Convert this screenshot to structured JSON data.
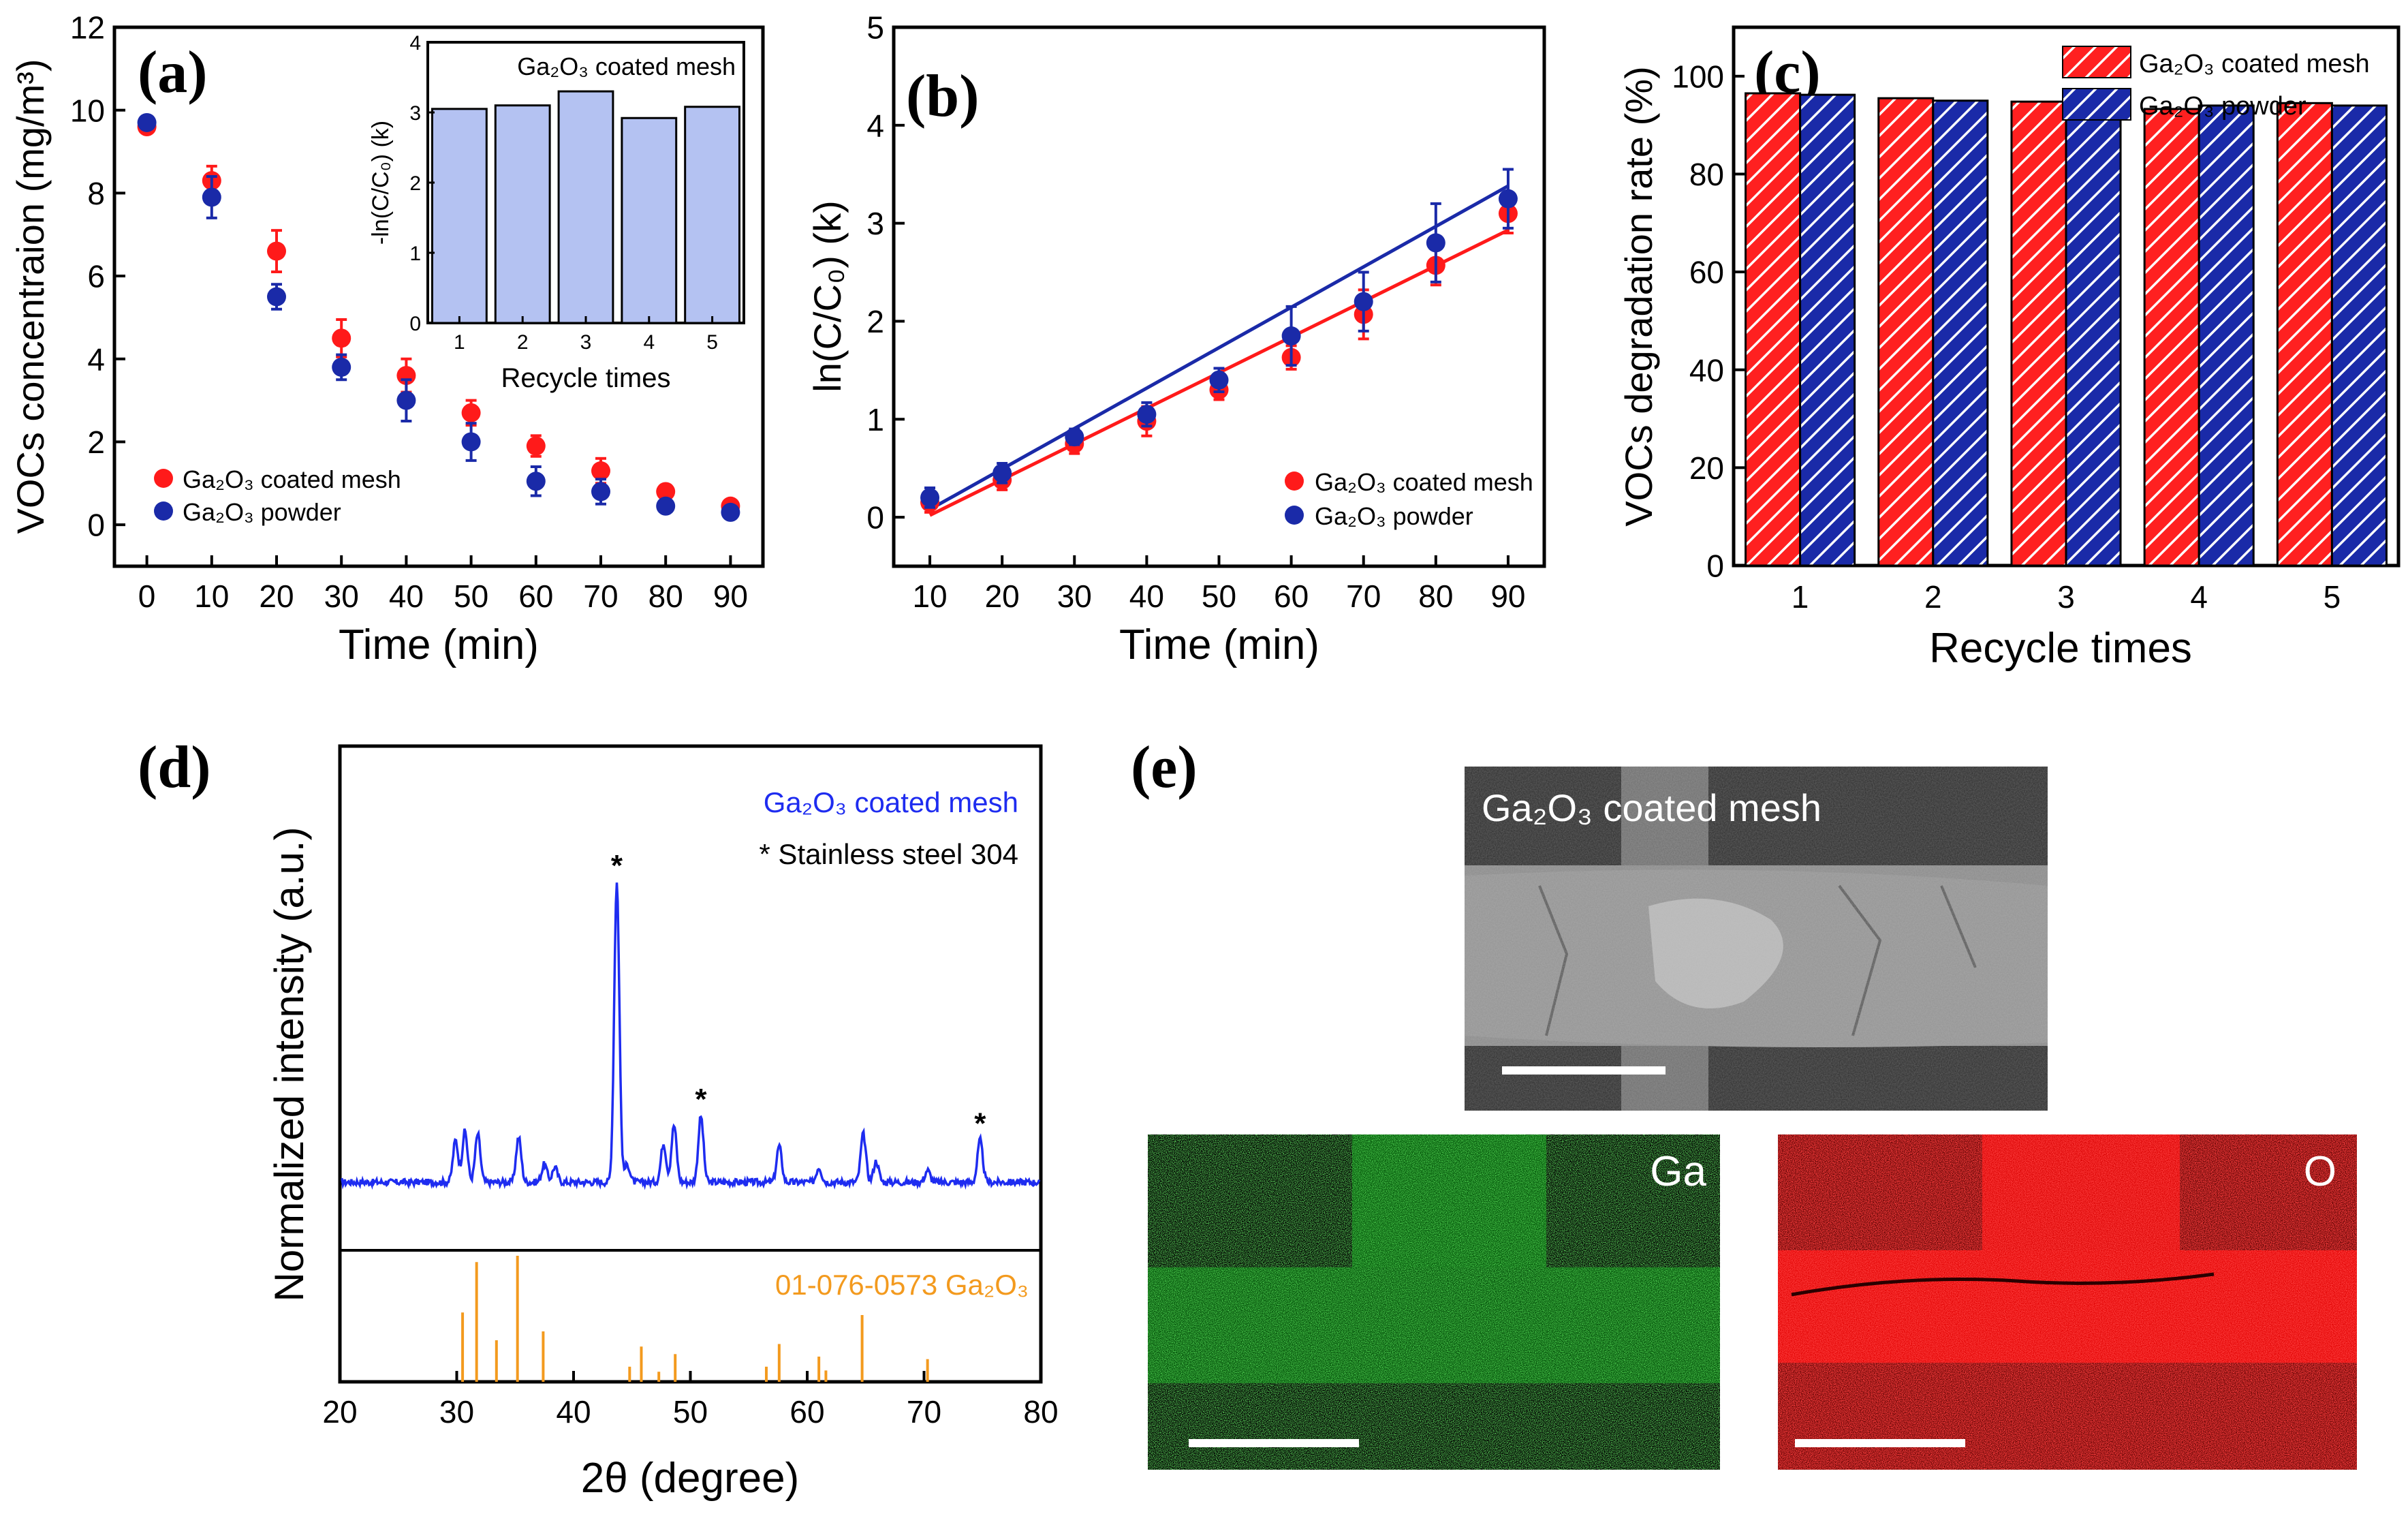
{
  "figure": {
    "panels": {
      "a": "(a)",
      "b": "(b)",
      "c": "(c)",
      "d": "(d)",
      "e": "(e)"
    }
  },
  "chart_data": [
    {
      "id": "a",
      "type": "scatter",
      "xlabel": "Time (min)",
      "ylabel": "VOCs concentraion (mg/m³)",
      "xlim": [
        -5,
        95
      ],
      "ylim": [
        -1,
        12
      ],
      "xticks": [
        0,
        10,
        20,
        30,
        40,
        50,
        60,
        70,
        80,
        90
      ],
      "yticks": [
        0,
        2,
        4,
        6,
        8,
        10,
        12
      ],
      "legend": "bottom-left",
      "series": [
        {
          "name": "Ga₂O₃ coated mesh",
          "color": "#ff1a1a",
          "x": [
            0,
            10,
            20,
            30,
            40,
            50,
            60,
            70,
            80,
            90
          ],
          "y": [
            9.6,
            8.3,
            6.6,
            4.5,
            3.6,
            2.7,
            1.9,
            1.3,
            0.8,
            0.45
          ],
          "err": [
            0.1,
            0.35,
            0.5,
            0.45,
            0.4,
            0.3,
            0.25,
            0.3,
            0.15,
            0.15
          ]
        },
        {
          "name": "Ga₂O₃ powder",
          "color": "#1a2aa8",
          "x": [
            0,
            10,
            20,
            30,
            40,
            50,
            60,
            70,
            80,
            90
          ],
          "y": [
            9.7,
            7.9,
            5.5,
            3.8,
            3.0,
            2.0,
            1.05,
            0.8,
            0.45,
            0.3
          ],
          "err": [
            0.1,
            0.5,
            0.3,
            0.3,
            0.5,
            0.45,
            0.35,
            0.3,
            0.1,
            0.1
          ]
        }
      ],
      "inset": {
        "type": "bar",
        "title": "Ga₂O₃ coated mesh",
        "xlabel": "Recycle times",
        "ylabel": "-ln(C/C₀) (k)",
        "categories": [
          "1",
          "2",
          "3",
          "4",
          "5"
        ],
        "values": [
          3.05,
          3.1,
          3.3,
          2.92,
          3.08
        ],
        "ylim": [
          0,
          4
        ],
        "yticks": [
          0,
          1,
          2,
          3,
          4
        ],
        "color": "#b4c2f2"
      }
    },
    {
      "id": "b",
      "type": "scatter",
      "xlabel": "Time (min)",
      "ylabel": "ln(C/C₀) (k)",
      "xlim": [
        5,
        95
      ],
      "ylim": [
        -0.5,
        5
      ],
      "xticks": [
        10,
        20,
        30,
        40,
        50,
        60,
        70,
        80,
        90
      ],
      "yticks": [
        0,
        1,
        2,
        3,
        4,
        5
      ],
      "legend": "bottom-right",
      "series": [
        {
          "name": "Ga₂O₃ coated mesh",
          "color": "#ff1a1a",
          "x": [
            10,
            20,
            30,
            40,
            50,
            60,
            70,
            80,
            90
          ],
          "y": [
            0.15,
            0.38,
            0.75,
            0.98,
            1.3,
            1.63,
            2.07,
            2.57,
            3.1
          ],
          "err": [
            0.1,
            0.1,
            0.1,
            0.15,
            0.1,
            0.12,
            0.25,
            0.2,
            0.2
          ],
          "fit": [
            [
              10,
              0.02
            ],
            [
              90,
              2.93
            ]
          ]
        },
        {
          "name": "Ga₂O₃ powder",
          "color": "#1a2aa8",
          "x": [
            10,
            20,
            30,
            40,
            50,
            60,
            70,
            80,
            90
          ],
          "y": [
            0.2,
            0.45,
            0.82,
            1.05,
            1.4,
            1.85,
            2.2,
            2.8,
            3.25
          ],
          "err": [
            0.1,
            0.1,
            0.08,
            0.12,
            0.12,
            0.3,
            0.3,
            0.4,
            0.3
          ],
          "fit": [
            [
              10,
              0.08
            ],
            [
              90,
              3.38
            ]
          ]
        }
      ]
    },
    {
      "id": "c",
      "type": "bar",
      "xlabel": "Recycle times",
      "ylabel": "VOCs degradation rate (%)",
      "categories": [
        "1",
        "2",
        "3",
        "4",
        "5"
      ],
      "ylim": [
        0,
        110
      ],
      "yticks": [
        0,
        20,
        40,
        60,
        80,
        100
      ],
      "legend": "top-right",
      "series": [
        {
          "name": "Ga₂O₃ coated mesh",
          "color": "#ff1a1a",
          "values": [
            96.5,
            95.5,
            94.8,
            93.3,
            94.5
          ]
        },
        {
          "name": "Ga₂O₃ powder",
          "color": "#1a2aa8",
          "values": [
            96.2,
            95.0,
            95.0,
            94.0,
            94.0
          ]
        }
      ]
    },
    {
      "id": "d",
      "type": "line",
      "xlabel": "2θ (degree)",
      "ylabel": "Normalized intensity (a.u.)",
      "xlim": [
        20,
        80
      ],
      "xticks": [
        20,
        30,
        40,
        50,
        60,
        70,
        80
      ],
      "legend_lines": [
        "Ga₂O₃ coated mesh",
        "* Stainless steel 304"
      ],
      "star": "*",
      "series_color": "#1e2cf0",
      "peaks": [
        {
          "x": 29.9,
          "h": 0.14
        },
        {
          "x": 30.7,
          "h": 0.17
        },
        {
          "x": 31.8,
          "h": 0.16
        },
        {
          "x": 35.3,
          "h": 0.15
        },
        {
          "x": 37.5,
          "h": 0.06
        },
        {
          "x": 38.4,
          "h": 0.05
        },
        {
          "x": 43.7,
          "h": 1.0
        },
        {
          "x": 44.6,
          "h": 0.06
        },
        {
          "x": 47.7,
          "h": 0.13
        },
        {
          "x": 48.6,
          "h": 0.19
        },
        {
          "x": 50.9,
          "h": 0.22
        },
        {
          "x": 57.6,
          "h": 0.12
        },
        {
          "x": 61.0,
          "h": 0.05
        },
        {
          "x": 64.8,
          "h": 0.16
        },
        {
          "x": 65.9,
          "h": 0.07
        },
        {
          "x": 70.3,
          "h": 0.04
        },
        {
          "x": 74.8,
          "h": 0.14
        }
      ],
      "star_peaks": [
        43.7,
        50.9,
        74.8
      ],
      "reference": {
        "label": "01-076-0573 Ga₂O₃",
        "color": "#f39a1e",
        "lines": [
          {
            "x": 30.5,
            "h": 0.55
          },
          {
            "x": 31.7,
            "h": 0.95
          },
          {
            "x": 33.4,
            "h": 0.33
          },
          {
            "x": 35.2,
            "h": 1.0
          },
          {
            "x": 37.4,
            "h": 0.4
          },
          {
            "x": 44.8,
            "h": 0.12
          },
          {
            "x": 45.8,
            "h": 0.28
          },
          {
            "x": 47.3,
            "h": 0.08
          },
          {
            "x": 48.7,
            "h": 0.22
          },
          {
            "x": 56.5,
            "h": 0.12
          },
          {
            "x": 57.6,
            "h": 0.3
          },
          {
            "x": 61.0,
            "h": 0.2
          },
          {
            "x": 61.6,
            "h": 0.09
          },
          {
            "x": 64.7,
            "h": 0.53
          },
          {
            "x": 70.3,
            "h": 0.18
          }
        ]
      }
    }
  ],
  "panel_e": {
    "sem_label": "Ga₂O₃ coated mesh",
    "map_ga_label": "Ga",
    "map_o_label": "O"
  }
}
